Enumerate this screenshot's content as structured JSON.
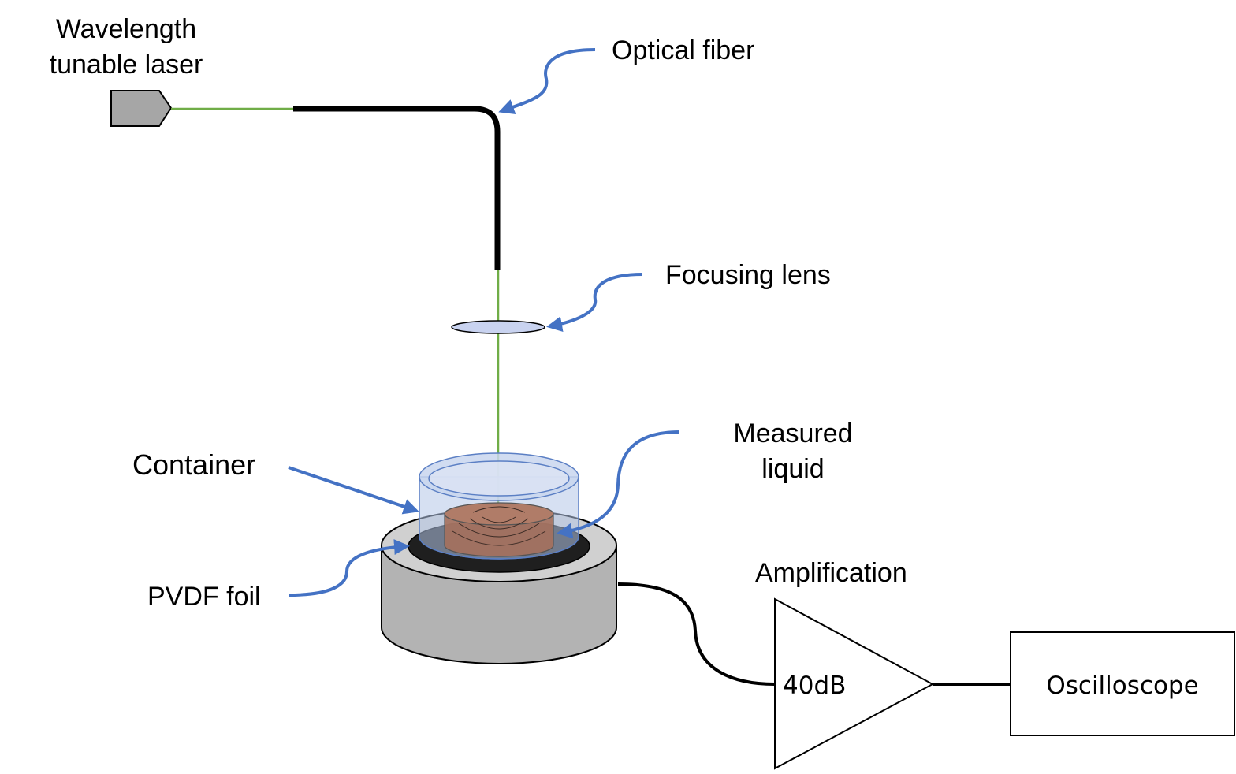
{
  "labels": {
    "laser_line1": "Wavelength",
    "laser_line2": "tunable laser",
    "optical_fiber": "Optical fiber",
    "focusing_lens": "Focusing lens",
    "container": "Container",
    "measured_liquid_line1": "Measured",
    "measured_liquid_line2": "liquid",
    "pvdf_foil": "PVDF foil",
    "amplification": "Amplification",
    "gain": "40dB",
    "oscilloscope": "Oscilloscope"
  },
  "colors": {
    "laser_beam": "#70AD47",
    "arrow": "#4472C4",
    "fiber": "#000000",
    "laser_body": "#A6A6A6",
    "sensor_body": "#B3B3B3",
    "sensor_top": "#D0D0D0",
    "pvdf_foil": "#1F1F1F",
    "container_glass": "#B4C7E7",
    "liquid": "#A5705C",
    "lens": "#C9D3F0"
  }
}
